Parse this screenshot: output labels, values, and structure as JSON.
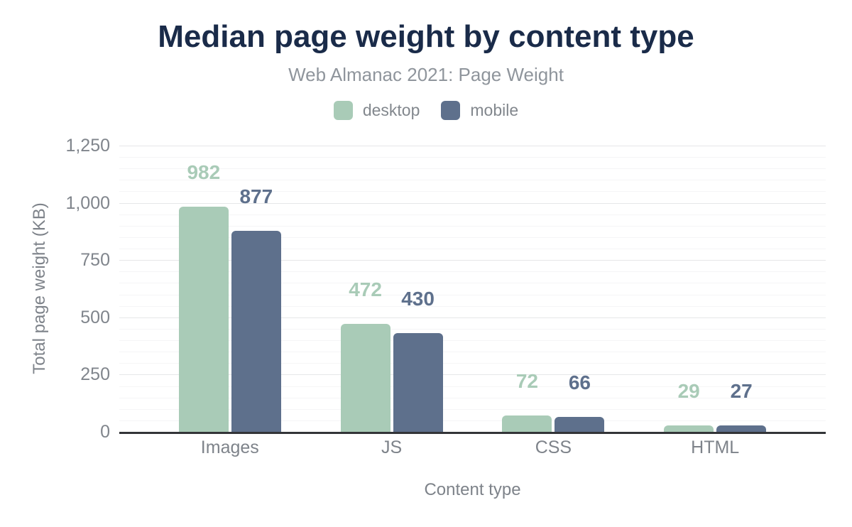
{
  "chart_data": {
    "type": "bar",
    "title": "Median page weight by content type",
    "subtitle": "Web Almanac 2021: Page Weight",
    "xlabel": "Content type",
    "ylabel": "Total page weight (KB)",
    "categories": [
      "Images",
      "JS",
      "CSS",
      "HTML"
    ],
    "series": [
      {
        "name": "desktop",
        "color": "#a9cbb7",
        "values": [
          982,
          472,
          72,
          29
        ]
      },
      {
        "name": "mobile",
        "color": "#5e708c",
        "values": [
          877,
          430,
          66,
          27
        ]
      }
    ],
    "value_labels": true,
    "ylim": [
      0,
      1250
    ],
    "ytick_step": 250,
    "yminor_step": 50,
    "ytick_labels": [
      "0",
      "250",
      "500",
      "750",
      "1,000",
      "1,250"
    ],
    "grid": true,
    "legend_position": "top"
  }
}
